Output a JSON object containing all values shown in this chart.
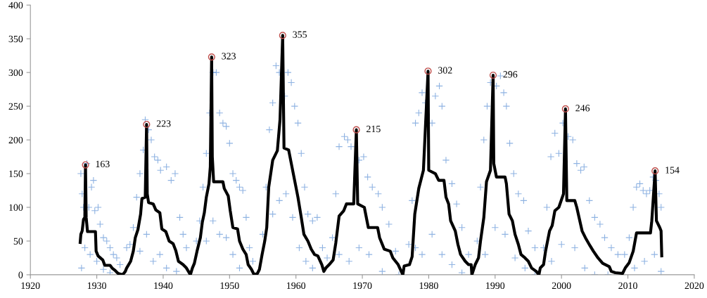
{
  "chart_data": {
    "type": "scatter",
    "xlim": [
      1920,
      2020
    ],
    "xticks": [
      1920,
      1930,
      1940,
      1950,
      1960,
      1970,
      1980,
      1990,
      2000,
      2010,
      2020
    ],
    "ylim": [
      0,
      400
    ],
    "yticks": [
      0,
      50,
      100,
      150,
      200,
      250,
      300,
      350,
      400
    ],
    "grid": false,
    "legend": false,
    "series": [
      {
        "marker": "cross",
        "color": "#6a9ad8",
        "x": [
          1927.6,
          1927.8,
          1928,
          1928.5,
          1928.8,
          1929.2,
          1929.5,
          1929.7,
          1930.2,
          1930.5,
          1931,
          1931.5,
          1932,
          1932.5,
          1933,
          1933.5,
          1928.2,
          1929,
          1930,
          1931,
          1932,
          1927.7,
          1934.5,
          1935,
          1935.5,
          1936,
          1936.5,
          1937,
          1937.3,
          1937.8,
          1938.2,
          1938.7,
          1939.2,
          1939.6,
          1940.5,
          1941.2,
          1941.8,
          1942.5,
          1943,
          1943.5,
          1936.5,
          1937.5,
          1938.5,
          1939.5,
          1940.5,
          1942,
          1945,
          1945.5,
          1946,
          1946.5,
          1947,
          1947.5,
          1948,
          1948.5,
          1949,
          1949.5,
          1950,
          1950.5,
          1951,
          1951.5,
          1952,
          1952.5,
          1953,
          1946.5,
          1947.5,
          1948.5,
          1949.5,
          1950.5,
          1951.5,
          1953.5,
          1955,
          1955.5,
          1956,
          1956.5,
          1957,
          1957.5,
          1958.3,
          1958.8,
          1959.3,
          1959.8,
          1960.3,
          1960.8,
          1961.3,
          1961.8,
          1962.5,
          1963.2,
          1964,
          1956.5,
          1957.5,
          1958.5,
          1959.5,
          1960.5,
          1961.5,
          1962.5,
          1964.7,
          1965.5,
          1966,
          1966.5,
          1967.3,
          1967.8,
          1968.3,
          1969.5,
          1970.2,
          1970.8,
          1971.5,
          1972.4,
          1973,
          1974,
          1975,
          1966.5,
          1968,
          1969.5,
          1971,
          1973,
          1975.5,
          1977,
          1977.5,
          1978,
          1978.5,
          1979,
          1979.5,
          1980.5,
          1981,
          1981.6,
          1982,
          1982.6,
          1983.5,
          1984.2,
          1985,
          1986,
          1978,
          1979,
          1980.5,
          1982,
          1983.5,
          1985,
          1987.3,
          1987.8,
          1988.3,
          1988.8,
          1989.3,
          1990.2,
          1990.8,
          1991.3,
          1991.7,
          1992.2,
          1992.8,
          1993.5,
          1994.3,
          1995,
          1996,
          1988.5,
          1990,
          1991.5,
          1993,
          1994.5,
          1996,
          1997.3,
          1997.8,
          1998.4,
          1999,
          1999.6,
          2000.2,
          2001,
          2001.7,
          2002.3,
          2002.9,
          2003.4,
          2004.2,
          2005,
          2005.8,
          2006.5,
          2007.5,
          2008.5,
          1998.5,
          2000,
          2002,
          2003.5,
          2005,
          2007,
          2009.5,
          2010.2,
          2010.8,
          2011.3,
          2011.8,
          2012.3,
          2012.8,
          2013.3,
          2013.8,
          2014.2,
          2014.7,
          2015.0,
          2011,
          2012.5,
          2014,
          2015
        ],
        "values": [
          150,
          120,
          100,
          165,
          100,
          130,
          140,
          95,
          100,
          75,
          55,
          50,
          40,
          30,
          25,
          15,
          40,
          30,
          20,
          8,
          3,
          10,
          40,
          45,
          70,
          115,
          150,
          185,
          230,
          215,
          200,
          175,
          170,
          155,
          160,
          140,
          150,
          85,
          60,
          40,
          35,
          60,
          20,
          30,
          10,
          5,
          50,
          80,
          130,
          180,
          240,
          300,
          300,
          240,
          225,
          220,
          195,
          150,
          140,
          130,
          125,
          85,
          40,
          50,
          80,
          60,
          55,
          30,
          10,
          20,
          60,
          130,
          215,
          255,
          310,
          300,
          265,
          300,
          285,
          250,
          225,
          180,
          130,
          90,
          80,
          85,
          40,
          90,
          110,
          120,
          85,
          40,
          20,
          10,
          25,
          55,
          120,
          190,
          205,
          200,
          190,
          170,
          175,
          145,
          130,
          120,
          100,
          75,
          35,
          30,
          20,
          40,
          30,
          5,
          0,
          45,
          110,
          225,
          240,
          270,
          255,
          225,
          265,
          280,
          250,
          170,
          135,
          105,
          70,
          30,
          40,
          30,
          60,
          30,
          15,
          3,
          50,
          130,
          200,
          250,
          285,
          280,
          295,
          270,
          250,
          195,
          150,
          120,
          110,
          65,
          40,
          30,
          70,
          60,
          25,
          10,
          0,
          40,
          100,
          175,
          210,
          180,
          225,
          205,
          200,
          165,
          155,
          160,
          110,
          85,
          75,
          55,
          40,
          30,
          20,
          45,
          40,
          10,
          0,
          0,
          30,
          55,
          100,
          130,
          135,
          125,
          120,
          125,
          145,
          140,
          120,
          100,
          10,
          20,
          30,
          5
        ]
      },
      {
        "type": "line",
        "color": "#000000",
        "x": [
          1927.5,
          1927.6,
          1927.8,
          1928.0,
          1928.2,
          1928.3,
          1928.4,
          1928.6,
          1929.8,
          1929.9,
          1930.2,
          1930.9,
          1931.2,
          1932.0,
          1932.3,
          1932.8,
          1933.2,
          1933.9,
          1934.3,
          1934.5,
          1935.1,
          1935.5,
          1935.8,
          1936.2,
          1936.6,
          1936.8,
          1937.3,
          1937.5,
          1937.6,
          1937.8,
          1938.5,
          1938.9,
          1939.5,
          1939.8,
          1940.4,
          1940.9,
          1941.5,
          1941.9,
          1942.3,
          1943,
          1943.5,
          1944.1,
          1944.4,
          1944.7,
          1945.1,
          1945.6,
          1945.9,
          1946.2,
          1946.5,
          1946.9,
          1947.1,
          1947.3,
          1947.4,
          1947.6,
          1949,
          1949.2,
          1949.8,
          1950.1,
          1950.5,
          1951.2,
          1951.5,
          1952,
          1952.5,
          1952.8,
          1953.3,
          1953.7,
          1954.2,
          1954.5,
          1954.9,
          1955.3,
          1955.6,
          1955.9,
          1956.5,
          1957.2,
          1957.6,
          1958.0,
          1958.2,
          1958.9,
          1959.3,
          1959.9,
          1960.3,
          1960.8,
          1961.2,
          1961.8,
          1962.3,
          1962.8,
          1963.3,
          1963.9,
          1964.2,
          1964.5,
          1965.0,
          1965.6,
          1966.0,
          1966.5,
          1967.2,
          1967.6,
          1968.7,
          1969.1,
          1969.3,
          1970.3,
          1970.9,
          1972.3,
          1972.6,
          1973.3,
          1974.2,
          1974.6,
          1975.4,
          1976.1,
          1976.3,
          1977.1,
          1977.5,
          1977.9,
          1978.5,
          1979.2,
          1979.9,
          1980.0,
          1981,
          1981.5,
          1982.3,
          1982.6,
          1983,
          1983.3,
          1984,
          1984.4,
          1984.8,
          1985.5,
          1986,
          1986.4,
          1986.5,
          1987,
          1987.5,
          1987.8,
          1988.3,
          1988.7,
          1989.3,
          1989.7,
          1989.8,
          1990.2,
          1991.5,
          1991.7,
          1992.1,
          1992.6,
          1993,
          1993.5,
          1993.9,
          1994.5,
          1995.0,
          1995.5,
          1996.2,
          1996.6,
          1996.8,
          1997.3,
          1997.6,
          1998.2,
          1998.6,
          1999.0,
          1999.6,
          2000.3,
          2000.6,
          2000.8,
          2002.0,
          2002.3,
          2003.1,
          2003.6,
          2004.3,
          2004.8,
          2005.5,
          2006.2,
          2007.2,
          2007.5,
          2008.1,
          2009.2,
          2009.6,
          2010.2,
          2010.8,
          2011.3,
          2013.4,
          2013.6,
          2014.1,
          2014.3,
          2014.8,
          2015.0,
          2015.1
        ],
        "values": [
          48,
          60,
          65,
          82,
          85,
          163,
          85,
          64,
          64,
          35,
          28,
          22,
          14,
          14,
          10,
          6,
          2,
          0,
          5,
          10,
          20,
          35,
          55,
          67,
          90,
          113,
          115,
          223,
          120,
          107,
          105,
          96,
          92,
          68,
          64,
          50,
          46,
          36,
          20,
          15,
          10,
          0,
          10,
          17,
          35,
          55,
          78,
          92,
          115,
          135,
          160,
          323,
          175,
          138,
          138,
          128,
          117,
          95,
          70,
          68,
          50,
          38,
          30,
          15,
          8,
          0,
          2,
          8,
          30,
          50,
          70,
          130,
          170,
          184,
          230,
          355,
          188,
          185,
          165,
          135,
          115,
          85,
          60,
          50,
          38,
          30,
          28,
          15,
          5,
          10,
          15,
          22,
          47,
          87,
          95,
          105,
          105,
          215,
          105,
          100,
          70,
          70,
          55,
          38,
          35,
          25,
          15,
          0,
          13,
          15,
          27,
          90,
          128,
          155,
          302,
          155,
          150,
          140,
          140,
          115,
          105,
          80,
          65,
          45,
          30,
          20,
          15,
          15,
          0,
          15,
          25,
          50,
          85,
          138,
          155,
          296,
          165,
          145,
          145,
          135,
          90,
          80,
          60,
          45,
          30,
          25,
          20,
          10,
          5,
          0,
          10,
          15,
          35,
          65,
          73,
          95,
          100,
          120,
          246,
          110,
          110,
          100,
          65,
          55,
          43,
          35,
          25,
          17,
          12,
          5,
          3,
          2,
          10,
          18,
          35,
          62,
          62,
          80,
          154,
          80,
          70,
          65,
          28
        ]
      },
      {
        "marker": "circle",
        "color": "#c0504d",
        "x": [
          1928.3,
          1937.5,
          1947.3,
          1958.0,
          1969.1,
          1979.9,
          1989.7,
          2000.6,
          2014.1
        ],
        "values": [
          163,
          223,
          323,
          355,
          215,
          302,
          296,
          246,
          154
        ],
        "value_labels": [
          "163",
          "223",
          "323",
          "355",
          "215",
          "302",
          "296",
          "246",
          "154"
        ]
      }
    ]
  }
}
